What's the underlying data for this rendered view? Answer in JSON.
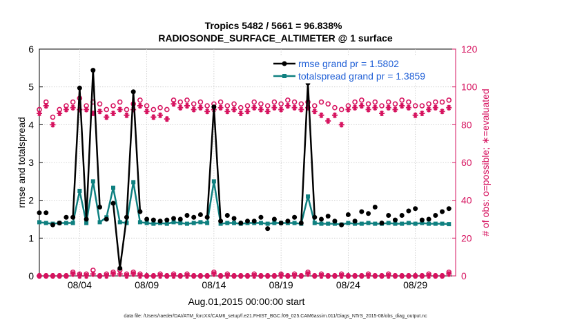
{
  "chart_data": {
    "type": "line",
    "title": "Tropics 5482 / 5661 = 96.838%",
    "subtitle": "RADIOSONDE_SURFACE_ALTIMETER @ 1 surface",
    "xlabel": "Aug.01,2015 00:00:00 start",
    "ylabel_left": "rmse and totalspread",
    "ylabel_right": "# of obs: o=possible; ∗=evaluated",
    "footnote": "data file: /Users/raeder/DAI/ATM_forcXX/CAM6_setup/f.e21.FHIST_BGC.f09_025.CAM6assim.011/Diags_NTrS_2015-08/obs_diag_output.nc",
    "x_tick_labels": [
      "08/04",
      "08/09",
      "08/14",
      "08/19",
      "08/24",
      "08/29"
    ],
    "x_tick_days": [
      4,
      9,
      14,
      19,
      24,
      29
    ],
    "x_range_days": [
      1,
      32
    ],
    "yleft_range": [
      0,
      6
    ],
    "yleft_ticks": [
      0,
      1,
      2,
      3,
      4,
      5,
      6
    ],
    "yright_range": [
      0,
      120
    ],
    "yright_ticks": [
      0,
      20,
      40,
      60,
      80,
      100,
      120
    ],
    "x_days": [
      1.0,
      1.5,
      2.0,
      2.5,
      3.0,
      3.5,
      4.0,
      4.5,
      5.0,
      5.5,
      6.0,
      6.5,
      7.0,
      7.5,
      8.0,
      8.5,
      9.0,
      9.5,
      10.0,
      10.5,
      11.0,
      11.5,
      12.0,
      12.5,
      13.0,
      13.5,
      14.0,
      14.5,
      15.0,
      15.5,
      16.0,
      16.5,
      17.0,
      17.5,
      18.0,
      18.5,
      19.0,
      19.5,
      20.0,
      20.5,
      21.0,
      21.5,
      22.0,
      22.5,
      23.0,
      23.5,
      24.0,
      24.5,
      25.0,
      25.5,
      26.0,
      26.5,
      27.0,
      27.5,
      28.0,
      28.5,
      29.0,
      29.5,
      30.0,
      30.5,
      31.0,
      31.5
    ],
    "series": [
      {
        "name": "rmse",
        "legend": "rmse grand pr = 1.5802",
        "color": "#000000",
        "axis": "left",
        "values": [
          1.67,
          1.67,
          1.35,
          1.4,
          1.55,
          1.55,
          4.97,
          1.5,
          5.44,
          1.82,
          1.5,
          1.92,
          0.2,
          1.55,
          4.87,
          1.7,
          1.5,
          1.48,
          1.45,
          1.48,
          1.52,
          1.5,
          1.6,
          1.55,
          1.62,
          1.55,
          4.47,
          1.45,
          1.6,
          1.52,
          1.4,
          1.45,
          1.45,
          1.55,
          1.25,
          1.5,
          1.4,
          1.45,
          1.55,
          1.4,
          5.1,
          1.55,
          1.5,
          1.58,
          1.45,
          1.35,
          1.62,
          1.45,
          1.7,
          1.65,
          1.82,
          1.4,
          1.6,
          1.48,
          1.6,
          1.72,
          1.78,
          1.48,
          1.5,
          1.6,
          1.7,
          1.78
        ]
      },
      {
        "name": "totalspread",
        "legend": "totalspread grand pr = 1.3859",
        "color": "#0f8080",
        "axis": "left",
        "values": [
          1.42,
          1.4,
          1.38,
          1.4,
          1.4,
          1.4,
          2.25,
          1.4,
          2.5,
          1.42,
          1.55,
          2.33,
          1.42,
          1.4,
          2.48,
          1.42,
          1.4,
          1.38,
          1.4,
          1.38,
          1.42,
          1.4,
          1.38,
          1.4,
          1.42,
          1.4,
          2.5,
          1.38,
          1.4,
          1.4,
          1.38,
          1.4,
          1.4,
          1.4,
          1.38,
          1.4,
          1.4,
          1.4,
          1.4,
          1.38,
          2.1,
          1.4,
          1.38,
          1.38,
          1.38,
          1.36,
          1.4,
          1.38,
          1.38,
          1.4,
          1.38,
          1.38,
          1.4,
          1.38,
          1.38,
          1.4,
          1.38,
          1.4,
          1.38,
          1.38,
          1.38,
          1.37
        ]
      },
      {
        "name": "possible",
        "legend": "o=possible",
        "color": "#d6135f",
        "axis": "right",
        "marker": "circle",
        "values": [
          88,
          92,
          84,
          88,
          90,
          92,
          94,
          90,
          92,
          91,
          88,
          90,
          92,
          88,
          91,
          93,
          90,
          88,
          89,
          88,
          93,
          92,
          93,
          91,
          92,
          90,
          91,
          92,
          90,
          91,
          89,
          90,
          92,
          91,
          90,
          92,
          91,
          93,
          92,
          91,
          92,
          90,
          92,
          91,
          89,
          88,
          90,
          92,
          93,
          91,
          92,
          90,
          92,
          91,
          93,
          92,
          90,
          90,
          91,
          92,
          92,
          93
        ]
      },
      {
        "name": "evaluated",
        "legend": "∗=evaluated",
        "color": "#d6135f",
        "axis": "right",
        "marker": "asterisk",
        "values": [
          86,
          90,
          80,
          86,
          88,
          89,
          88,
          88,
          86,
          87,
          84,
          86,
          88,
          85,
          88,
          90,
          87,
          84,
          85,
          83,
          91,
          89,
          90,
          88,
          89,
          87,
          88,
          89,
          87,
          88,
          86,
          87,
          89,
          88,
          87,
          89,
          88,
          90,
          89,
          88,
          89,
          87,
          85,
          82,
          85,
          80,
          88,
          89,
          90,
          88,
          89,
          86,
          89,
          88,
          90,
          89,
          85,
          86,
          88,
          89,
          87,
          89
        ]
      },
      {
        "name": "possible_unused",
        "color": "#d6135f",
        "axis": "right",
        "marker": "circle",
        "values": [
          0,
          0,
          0,
          0,
          0,
          2,
          1,
          1,
          3,
          0,
          1,
          2,
          3,
          1,
          2,
          1,
          0,
          0,
          1,
          0,
          1,
          0,
          1,
          0,
          0,
          0,
          2,
          0,
          1,
          0,
          0,
          0,
          1,
          0,
          0,
          0,
          1,
          0,
          1,
          0,
          2,
          0,
          1,
          0,
          0,
          1,
          0,
          0,
          0,
          1,
          0,
          0,
          1,
          0,
          0,
          0,
          0,
          0,
          1,
          0,
          0,
          2
        ]
      },
      {
        "name": "evaluated_unused",
        "color": "#d6135f",
        "axis": "right",
        "marker": "asterisk",
        "values": [
          0,
          0,
          0,
          0,
          0,
          1,
          0,
          0,
          1,
          0,
          0,
          1,
          1,
          0,
          1,
          0,
          0,
          0,
          0,
          0,
          0,
          0,
          0,
          0,
          0,
          0,
          1,
          0,
          0,
          0,
          0,
          0,
          0,
          0,
          0,
          0,
          0,
          0,
          0,
          0,
          1,
          0,
          0,
          0,
          0,
          0,
          0,
          0,
          0,
          0,
          0,
          0,
          0,
          0,
          0,
          0,
          0,
          0,
          0,
          0,
          0,
          1
        ]
      }
    ]
  }
}
